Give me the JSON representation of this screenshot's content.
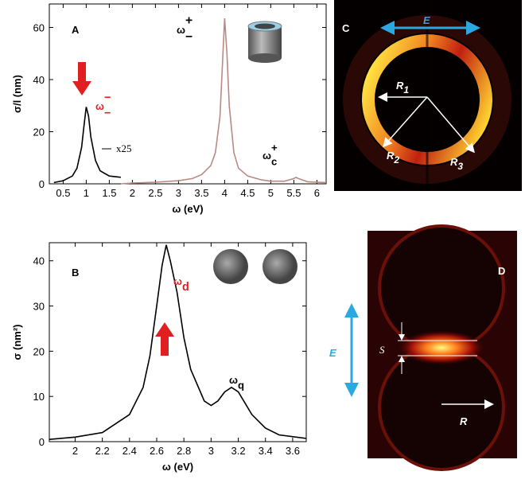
{
  "chart_data": [
    {
      "type": "line",
      "panel": "A",
      "xlabel": "ω (eV)",
      "ylabel": "σ/l (nm)",
      "xlim": [
        0.2,
        6.2
      ],
      "xticks": [
        0.5,
        1,
        1.5,
        2,
        2.5,
        3,
        3.5,
        4,
        4.5,
        5,
        5.5,
        6
      ],
      "ylim": [
        0,
        69
      ],
      "yticks": [
        0,
        20,
        40,
        60
      ],
      "series": [
        {
          "name": "x25",
          "color": "#000000",
          "x": [
            0.3,
            0.5,
            0.7,
            0.8,
            0.9,
            0.95,
            1.0,
            1.05,
            1.1,
            1.2,
            1.3,
            1.5,
            1.75
          ],
          "values": [
            0.5,
            1.2,
            3,
            6,
            14,
            22,
            29.5,
            26,
            18,
            9,
            5,
            3,
            2.5
          ]
        },
        {
          "color": "#b98a84",
          "x": [
            1.75,
            2,
            2.5,
            3,
            3.3,
            3.5,
            3.7,
            3.8,
            3.9,
            3.95,
            4.0,
            4.05,
            4.1,
            4.2,
            4.3,
            4.5,
            4.8,
            5.0,
            5.3,
            5.5,
            5.55,
            5.6,
            5.8,
            6.2
          ],
          "values": [
            0,
            0.3,
            0.6,
            1.2,
            2,
            3.5,
            7,
            12,
            26,
            45,
            63.5,
            50,
            30,
            12,
            6,
            3,
            1.5,
            1,
            1,
            2,
            2.5,
            2,
            0.8,
            0.5
          ]
        }
      ],
      "annotations": [
        {
          "text": "ω",
          "sup": "+",
          "sub": "−",
          "color": "#000000"
        },
        {
          "text": "ω",
          "sup": "−",
          "sub": "−",
          "color": "#e02020"
        },
        {
          "text": "ω",
          "sup": "+",
          "sub": "c",
          "color": "#000000"
        }
      ]
    },
    {
      "type": "line",
      "panel": "B",
      "xlabel": "ω (eV)",
      "ylabel": "σ (nm²)",
      "xlim": [
        1.81,
        3.7
      ],
      "xticks": [
        2,
        2.2,
        2.4,
        2.6,
        2.8,
        3,
        3.2,
        3.4,
        3.6
      ],
      "ylim": [
        0,
        44
      ],
      "yticks": [
        0,
        10,
        20,
        30,
        40
      ],
      "series": [
        {
          "color": "#000000",
          "x": [
            1.81,
            2.0,
            2.2,
            2.4,
            2.5,
            2.55,
            2.6,
            2.64,
            2.67,
            2.7,
            2.75,
            2.8,
            2.85,
            2.95,
            3.0,
            3.05,
            3.1,
            3.15,
            3.2,
            3.3,
            3.4,
            3.5,
            3.7
          ],
          "values": [
            0.5,
            1,
            2,
            6,
            12,
            19,
            30,
            39,
            43.5,
            40,
            33,
            23,
            16,
            9,
            8,
            9,
            11,
            12,
            11,
            6,
            3,
            1.5,
            0.7
          ]
        }
      ],
      "annotations": [
        {
          "text": "ω",
          "sub": "d",
          "color": "#e02020"
        },
        {
          "text": "ω",
          "sub": "q",
          "color": "#000000"
        }
      ]
    }
  ],
  "panels": {
    "C": {
      "label": "C",
      "field": "E",
      "radii": [
        "R",
        "R",
        "R"
      ],
      "radii_sub": [
        "1",
        "2",
        "3"
      ]
    },
    "D": {
      "label": "D",
      "field": "E",
      "gap": "S",
      "radius": "R"
    }
  }
}
